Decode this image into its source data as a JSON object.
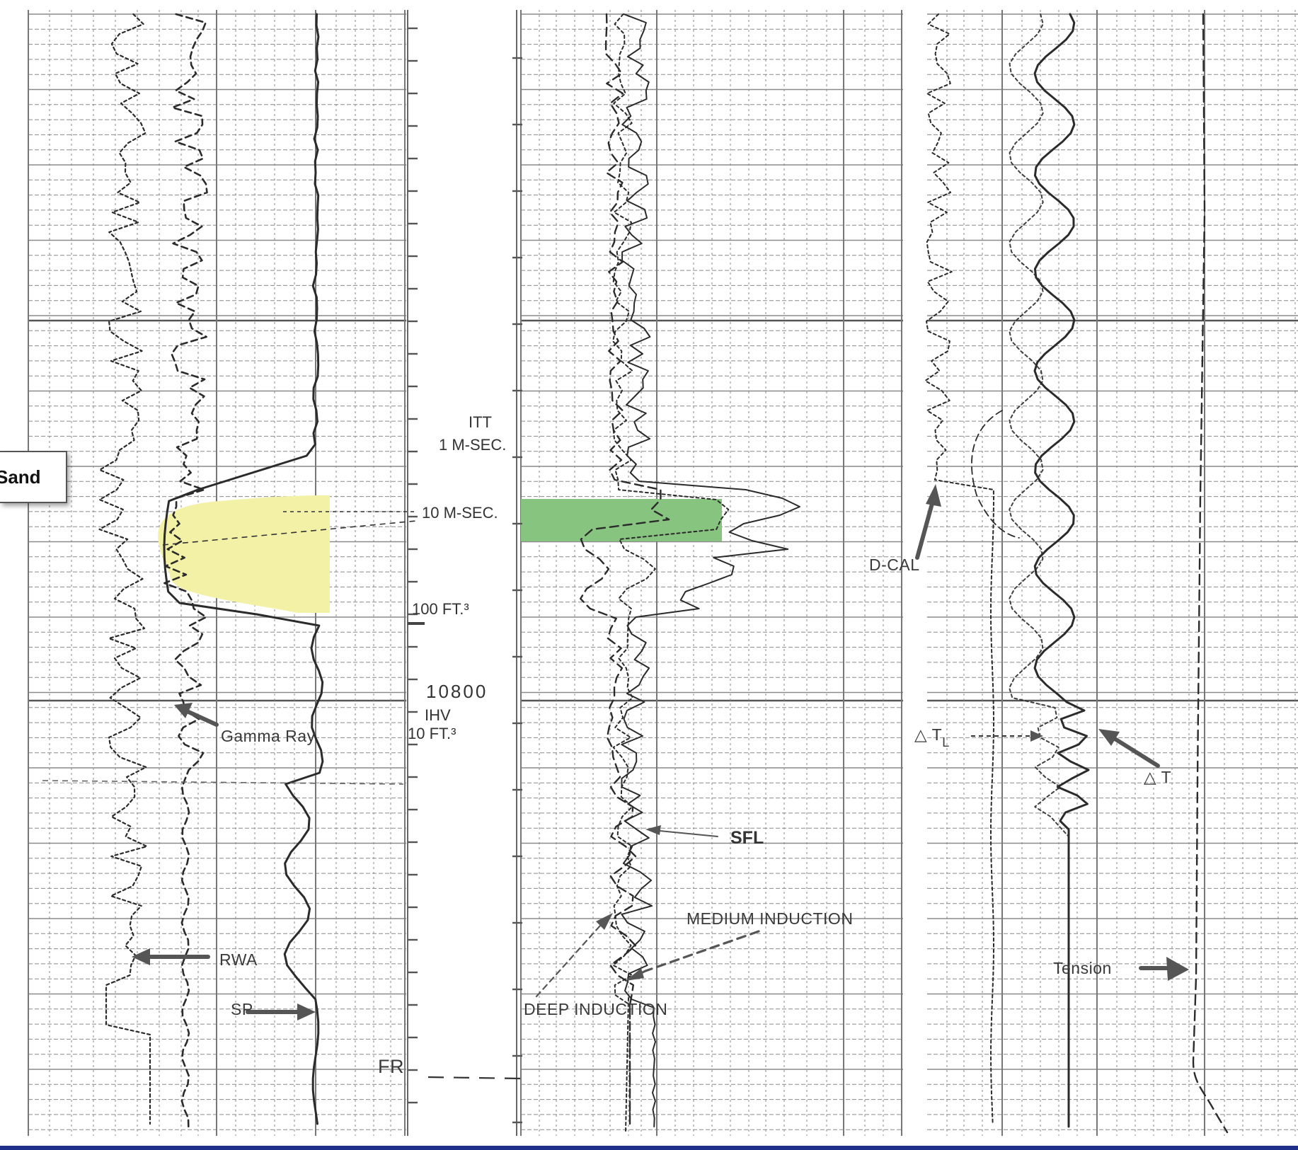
{
  "title": "",
  "callout": {
    "label": "Sand"
  },
  "labels": {
    "gamma_ray": "Gamma Ray",
    "rwa": "RWA",
    "sp": "SP",
    "itt": "ITT",
    "itt_1": "1 M-SEC.",
    "itt_10": "10 M-SEC.",
    "vol_100": "100 FT.³",
    "depth": "10800",
    "ihv": "IHV",
    "ihv_10": "10 FT.³",
    "fr": "FR",
    "sfl": "SFL",
    "medium_induction": "MEDIUM INDUCTION",
    "deep_induction": "DEEP INDUCTION",
    "d_cal": "D-CAL",
    "delta_tl": "△ T",
    "delta_tl_sub": "L",
    "delta_t": "△ T",
    "tension": "Tension"
  },
  "highlights": [
    {
      "name": "sand-sp-gamma-zone",
      "track": 1,
      "color": "#f3f1a6"
    },
    {
      "name": "resistivity-zone",
      "track": 2,
      "color": "#86c47f"
    }
  ],
  "colors": {
    "grid": "#8a8a8a",
    "curve": "#2b2b2b",
    "frame": "#1e2f8a"
  }
}
